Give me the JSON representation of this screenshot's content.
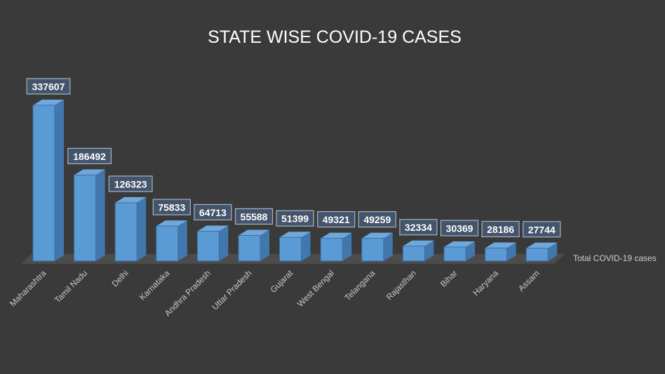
{
  "chart_data": {
    "type": "bar",
    "style": "3d-column",
    "title": "STATE WISE COVID-19 CASES",
    "categories": [
      "Maharashtra",
      "Tamil Nadu",
      "Delhi",
      "Karnataka",
      "Andhra Pradesh",
      "Uttar Pradesh",
      "Gujarat",
      "West Bengal",
      "Telangana",
      "Rajasthan",
      "Bihar",
      "Haryana",
      "Assam"
    ],
    "series": [
      {
        "name": "Total COVID-19 cases",
        "values": [
          337607,
          186492,
          126323,
          75833,
          64713,
          55588,
          51399,
          49321,
          49259,
          32334,
          30369,
          28186,
          27744
        ]
      }
    ],
    "xlabel": "",
    "ylabel": "",
    "ylim": [
      0,
      337607
    ],
    "grid": false,
    "data_labels": true,
    "legend": "right of floor",
    "colors": {
      "background": "#3a3a3a",
      "bar_front": "#5b9bd5",
      "bar_side": "#4177ad",
      "bar_top": "#6fa8dc",
      "floor": "#4c4c4c",
      "text": "#d9d9d9"
    }
  }
}
